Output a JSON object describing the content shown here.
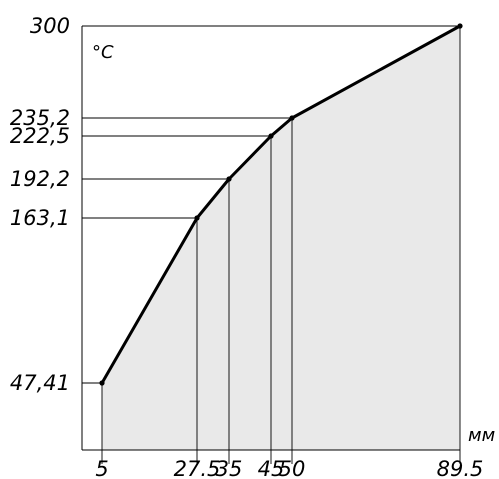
{
  "chart_data": {
    "type": "area",
    "title": "",
    "xlabel": "мм",
    "ylabel": "°С",
    "xlim": [
      5,
      89.5
    ],
    "ylim": [
      47.41,
      300
    ],
    "grid": false,
    "legend": "none",
    "colors": {
      "line": "#000000",
      "fill": "#e9e9e9"
    },
    "x": [
      5,
      27.5,
      35,
      45,
      50,
      89.5
    ],
    "y": [
      47.41,
      163.1,
      192.2,
      222.5,
      235.2,
      300
    ],
    "x_tick_labels": [
      "5",
      "27.5",
      "35",
      "45",
      "50",
      "89.5"
    ],
    "y_tick_labels": [
      "47,41",
      "163,1",
      "192,2",
      "222,5",
      "235,2",
      "300"
    ]
  }
}
